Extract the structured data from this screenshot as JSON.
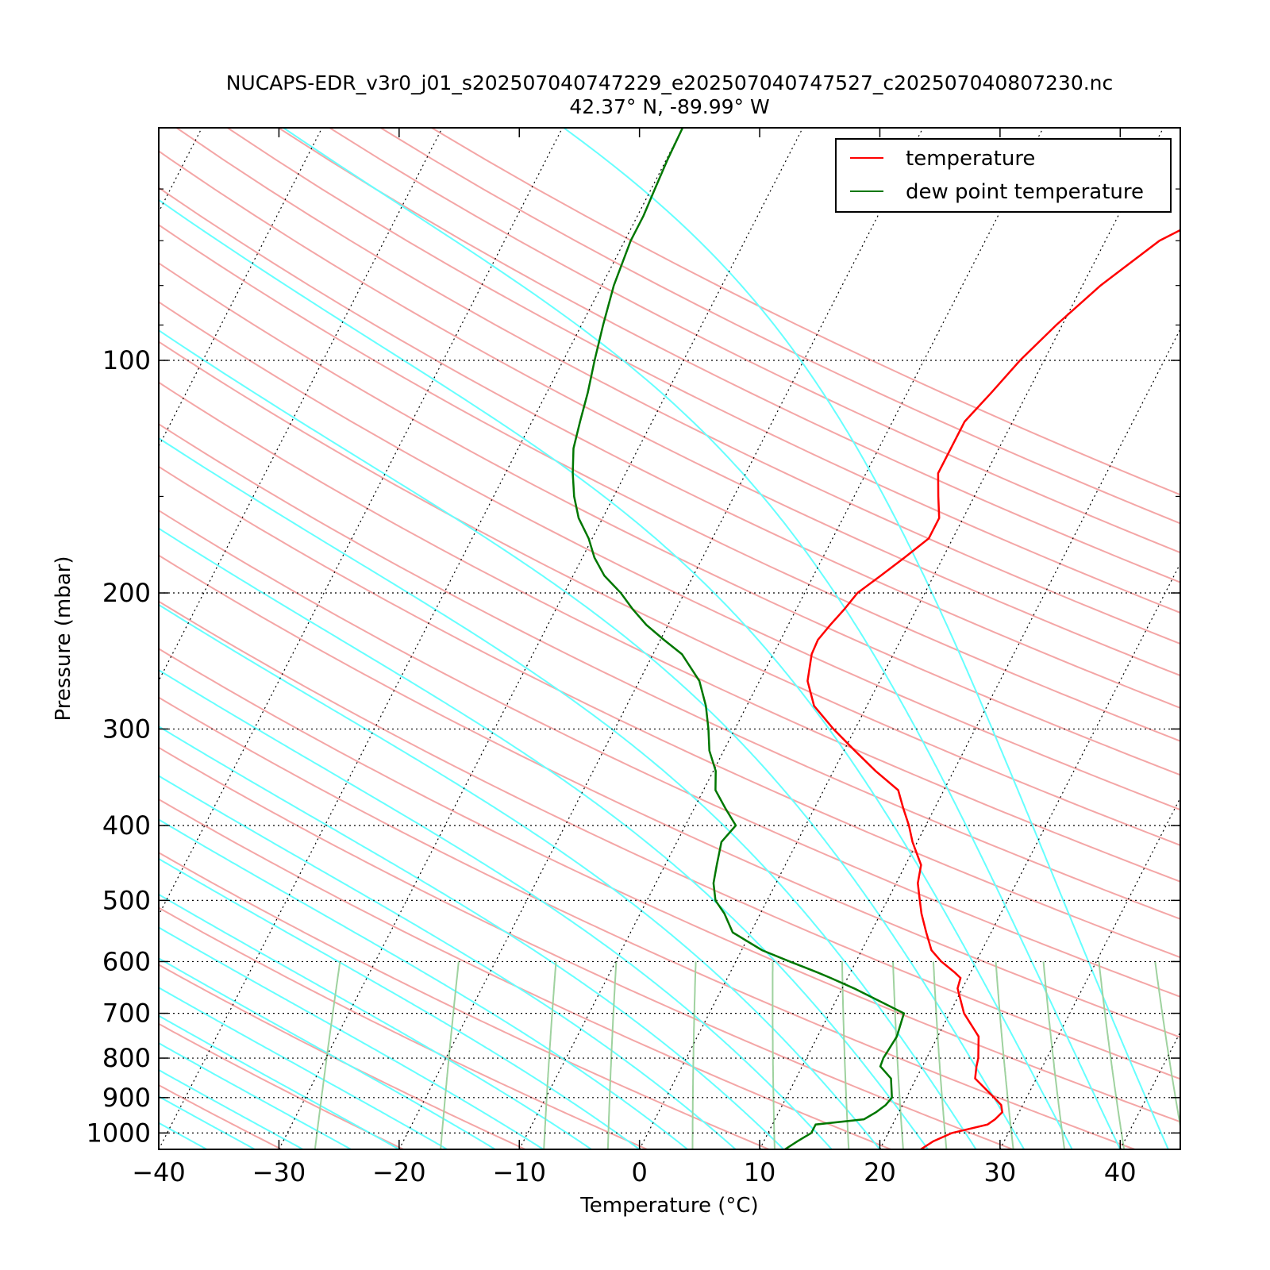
{
  "chart_data": {
    "type": "line",
    "title": "NUCAPS-EDR_v3r0_j01_s202507040747229_e202507040747527_c202507040807230.nc",
    "subtitle": "42.37° N, -89.99° W",
    "xlabel": "Temperature (°C)",
    "ylabel": "Pressure (mbar)",
    "x_ticks": [
      -40,
      -30,
      -20,
      -10,
      0,
      10,
      20,
      30,
      40
    ],
    "x_tick_labels": [
      "−40",
      "−30",
      "−20",
      "−10",
      "0",
      "10",
      "20",
      "30",
      "40"
    ],
    "xlim": [
      -40,
      45
    ],
    "y_scale": "log",
    "y_inverted": true,
    "ylim": [
      1050,
      50
    ],
    "y_ticks": [
      100,
      200,
      300,
      400,
      500,
      600,
      700,
      800,
      900,
      1000
    ],
    "y_tick_labels": [
      "100",
      "200",
      "300",
      "400",
      "500",
      "600",
      "700",
      "800",
      "900",
      "1000"
    ],
    "grid": true,
    "skew": "skew-T log-P",
    "legend": {
      "placement": "top-right",
      "entries": [
        "temperature",
        "dew point temperature"
      ]
    },
    "colors": {
      "temperature": "#ff0000",
      "dewpoint": "#007700",
      "dry_adiabats": "#f4a6a6",
      "moist_adiabats": "#66ffff",
      "mixing_ratio": "#9fd29f",
      "isotherms": "#000000"
    },
    "series": [
      {
        "name": "temperature",
        "pressure": [
          1050,
          1025,
          1000,
          975,
          960,
          940,
          920,
          900,
          850,
          820,
          800,
          750,
          700,
          650,
          630,
          620,
          600,
          580,
          550,
          520,
          500,
          475,
          450,
          420,
          400,
          380,
          360,
          340,
          320,
          300,
          280,
          260,
          240,
          230,
          220,
          210,
          200,
          190,
          180,
          170,
          160,
          150,
          140,
          130,
          120,
          110,
          100,
          90,
          80,
          70,
          65,
          60,
          55,
          50
        ],
        "temperature": [
          23.4,
          24.1,
          25.3,
          27.9,
          28.3,
          28.6,
          28.2,
          27.3,
          24.9,
          24.5,
          24.3,
          23.4,
          21.2,
          19.6,
          19.4,
          18.7,
          17.1,
          15.8,
          14.6,
          13.4,
          12.7,
          11.8,
          11.3,
          9.6,
          8.6,
          7.4,
          6.2,
          3.5,
          0.9,
          -1.8,
          -4.4,
          -6.0,
          -6.8,
          -6.9,
          -6.5,
          -6.0,
          -5.6,
          -4.4,
          -3.2,
          -2.0,
          -2.0,
          -3.0,
          -4.0,
          -4.0,
          -4.0,
          -3.0,
          -2.0,
          -0.5,
          1.5,
          4.5,
          7.5,
          10.5,
          12.5,
          14.5
        ]
      },
      {
        "name": "dew point temperature",
        "pressure": [
          1050,
          1025,
          1000,
          975,
          960,
          940,
          920,
          900,
          850,
          820,
          800,
          750,
          700,
          650,
          630,
          620,
          600,
          580,
          550,
          520,
          500,
          475,
          450,
          420,
          400,
          380,
          360,
          340,
          320,
          300,
          280,
          260,
          240,
          230,
          220,
          210,
          200,
          190,
          180,
          170,
          160,
          150,
          140,
          130,
          120,
          110,
          100,
          90,
          80,
          70,
          65,
          60,
          55,
          50
        ],
        "dewpoint": [
          12.1,
          12.8,
          13.6,
          13.6,
          17.4,
          18.1,
          18.6,
          18.8,
          17.9,
          16.5,
          16.4,
          16.6,
          16.2,
          11.0,
          8.6,
          7.3,
          4.5,
          1.7,
          -1.5,
          -3.0,
          -4.3,
          -5.2,
          -5.7,
          -6.3,
          -5.8,
          -7.4,
          -9.0,
          -9.8,
          -11.2,
          -12.2,
          -13.4,
          -15.0,
          -17.6,
          -19.7,
          -21.8,
          -23.6,
          -25.3,
          -27.4,
          -29.0,
          -30.3,
          -32.0,
          -33.3,
          -34.4,
          -35.4,
          -36.0,
          -36.6,
          -37.4,
          -38.2,
          -39.0,
          -39.5,
          -39.5,
          -39.7,
          -39.9,
          -40.0
        ]
      }
    ]
  }
}
